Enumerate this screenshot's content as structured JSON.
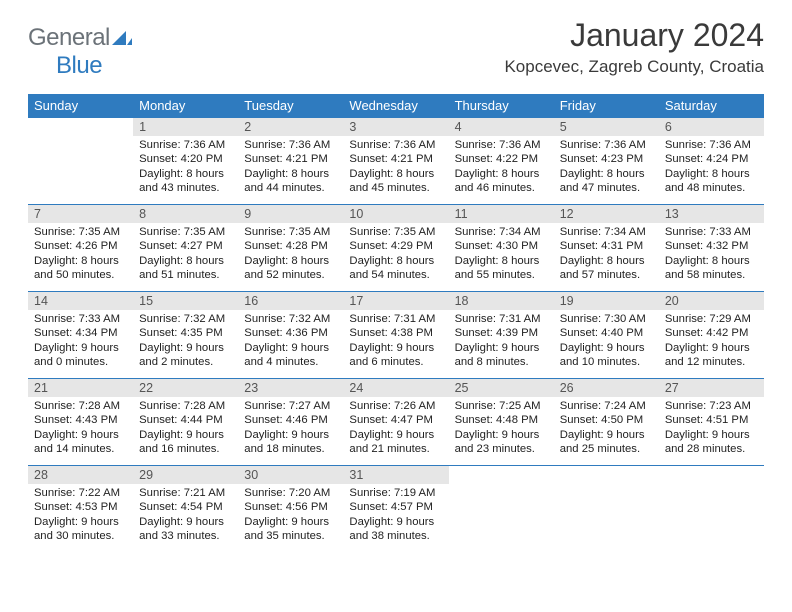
{
  "logo": {
    "general": "General",
    "blue": "Blue"
  },
  "title": "January 2024",
  "location": "Kopcevec, Zagreb County, Croatia",
  "colors": {
    "header_bg": "#2f7bbf",
    "header_text": "#ffffff",
    "daynum_bg": "#e6e6e6",
    "daynum_text": "#555555",
    "rule": "#2f7bbf",
    "body_text": "#222222",
    "logo_gray": "#6b7278",
    "logo_blue": "#2f7bbf"
  },
  "day_headers": [
    "Sunday",
    "Monday",
    "Tuesday",
    "Wednesday",
    "Thursday",
    "Friday",
    "Saturday"
  ],
  "weeks": [
    {
      "nums": [
        "",
        "1",
        "2",
        "3",
        "4",
        "5",
        "6"
      ],
      "cells": [
        null,
        {
          "sunrise": "Sunrise: 7:36 AM",
          "sunset": "Sunset: 4:20 PM",
          "day1": "Daylight: 8 hours",
          "day2": "and 43 minutes."
        },
        {
          "sunrise": "Sunrise: 7:36 AM",
          "sunset": "Sunset: 4:21 PM",
          "day1": "Daylight: 8 hours",
          "day2": "and 44 minutes."
        },
        {
          "sunrise": "Sunrise: 7:36 AM",
          "sunset": "Sunset: 4:21 PM",
          "day1": "Daylight: 8 hours",
          "day2": "and 45 minutes."
        },
        {
          "sunrise": "Sunrise: 7:36 AM",
          "sunset": "Sunset: 4:22 PM",
          "day1": "Daylight: 8 hours",
          "day2": "and 46 minutes."
        },
        {
          "sunrise": "Sunrise: 7:36 AM",
          "sunset": "Sunset: 4:23 PM",
          "day1": "Daylight: 8 hours",
          "day2": "and 47 minutes."
        },
        {
          "sunrise": "Sunrise: 7:36 AM",
          "sunset": "Sunset: 4:24 PM",
          "day1": "Daylight: 8 hours",
          "day2": "and 48 minutes."
        }
      ]
    },
    {
      "nums": [
        "7",
        "8",
        "9",
        "10",
        "11",
        "12",
        "13"
      ],
      "cells": [
        {
          "sunrise": "Sunrise: 7:35 AM",
          "sunset": "Sunset: 4:26 PM",
          "day1": "Daylight: 8 hours",
          "day2": "and 50 minutes."
        },
        {
          "sunrise": "Sunrise: 7:35 AM",
          "sunset": "Sunset: 4:27 PM",
          "day1": "Daylight: 8 hours",
          "day2": "and 51 minutes."
        },
        {
          "sunrise": "Sunrise: 7:35 AM",
          "sunset": "Sunset: 4:28 PM",
          "day1": "Daylight: 8 hours",
          "day2": "and 52 minutes."
        },
        {
          "sunrise": "Sunrise: 7:35 AM",
          "sunset": "Sunset: 4:29 PM",
          "day1": "Daylight: 8 hours",
          "day2": "and 54 minutes."
        },
        {
          "sunrise": "Sunrise: 7:34 AM",
          "sunset": "Sunset: 4:30 PM",
          "day1": "Daylight: 8 hours",
          "day2": "and 55 minutes."
        },
        {
          "sunrise": "Sunrise: 7:34 AM",
          "sunset": "Sunset: 4:31 PM",
          "day1": "Daylight: 8 hours",
          "day2": "and 57 minutes."
        },
        {
          "sunrise": "Sunrise: 7:33 AM",
          "sunset": "Sunset: 4:32 PM",
          "day1": "Daylight: 8 hours",
          "day2": "and 58 minutes."
        }
      ]
    },
    {
      "nums": [
        "14",
        "15",
        "16",
        "17",
        "18",
        "19",
        "20"
      ],
      "cells": [
        {
          "sunrise": "Sunrise: 7:33 AM",
          "sunset": "Sunset: 4:34 PM",
          "day1": "Daylight: 9 hours",
          "day2": "and 0 minutes."
        },
        {
          "sunrise": "Sunrise: 7:32 AM",
          "sunset": "Sunset: 4:35 PM",
          "day1": "Daylight: 9 hours",
          "day2": "and 2 minutes."
        },
        {
          "sunrise": "Sunrise: 7:32 AM",
          "sunset": "Sunset: 4:36 PM",
          "day1": "Daylight: 9 hours",
          "day2": "and 4 minutes."
        },
        {
          "sunrise": "Sunrise: 7:31 AM",
          "sunset": "Sunset: 4:38 PM",
          "day1": "Daylight: 9 hours",
          "day2": "and 6 minutes."
        },
        {
          "sunrise": "Sunrise: 7:31 AM",
          "sunset": "Sunset: 4:39 PM",
          "day1": "Daylight: 9 hours",
          "day2": "and 8 minutes."
        },
        {
          "sunrise": "Sunrise: 7:30 AM",
          "sunset": "Sunset: 4:40 PM",
          "day1": "Daylight: 9 hours",
          "day2": "and 10 minutes."
        },
        {
          "sunrise": "Sunrise: 7:29 AM",
          "sunset": "Sunset: 4:42 PM",
          "day1": "Daylight: 9 hours",
          "day2": "and 12 minutes."
        }
      ]
    },
    {
      "nums": [
        "21",
        "22",
        "23",
        "24",
        "25",
        "26",
        "27"
      ],
      "cells": [
        {
          "sunrise": "Sunrise: 7:28 AM",
          "sunset": "Sunset: 4:43 PM",
          "day1": "Daylight: 9 hours",
          "day2": "and 14 minutes."
        },
        {
          "sunrise": "Sunrise: 7:28 AM",
          "sunset": "Sunset: 4:44 PM",
          "day1": "Daylight: 9 hours",
          "day2": "and 16 minutes."
        },
        {
          "sunrise": "Sunrise: 7:27 AM",
          "sunset": "Sunset: 4:46 PM",
          "day1": "Daylight: 9 hours",
          "day2": "and 18 minutes."
        },
        {
          "sunrise": "Sunrise: 7:26 AM",
          "sunset": "Sunset: 4:47 PM",
          "day1": "Daylight: 9 hours",
          "day2": "and 21 minutes."
        },
        {
          "sunrise": "Sunrise: 7:25 AM",
          "sunset": "Sunset: 4:48 PM",
          "day1": "Daylight: 9 hours",
          "day2": "and 23 minutes."
        },
        {
          "sunrise": "Sunrise: 7:24 AM",
          "sunset": "Sunset: 4:50 PM",
          "day1": "Daylight: 9 hours",
          "day2": "and 25 minutes."
        },
        {
          "sunrise": "Sunrise: 7:23 AM",
          "sunset": "Sunset: 4:51 PM",
          "day1": "Daylight: 9 hours",
          "day2": "and 28 minutes."
        }
      ]
    },
    {
      "nums": [
        "28",
        "29",
        "30",
        "31",
        "",
        "",
        ""
      ],
      "cells": [
        {
          "sunrise": "Sunrise: 7:22 AM",
          "sunset": "Sunset: 4:53 PM",
          "day1": "Daylight: 9 hours",
          "day2": "and 30 minutes."
        },
        {
          "sunrise": "Sunrise: 7:21 AM",
          "sunset": "Sunset: 4:54 PM",
          "day1": "Daylight: 9 hours",
          "day2": "and 33 minutes."
        },
        {
          "sunrise": "Sunrise: 7:20 AM",
          "sunset": "Sunset: 4:56 PM",
          "day1": "Daylight: 9 hours",
          "day2": "and 35 minutes."
        },
        {
          "sunrise": "Sunrise: 7:19 AM",
          "sunset": "Sunset: 4:57 PM",
          "day1": "Daylight: 9 hours",
          "day2": "and 38 minutes."
        },
        null,
        null,
        null
      ]
    }
  ]
}
